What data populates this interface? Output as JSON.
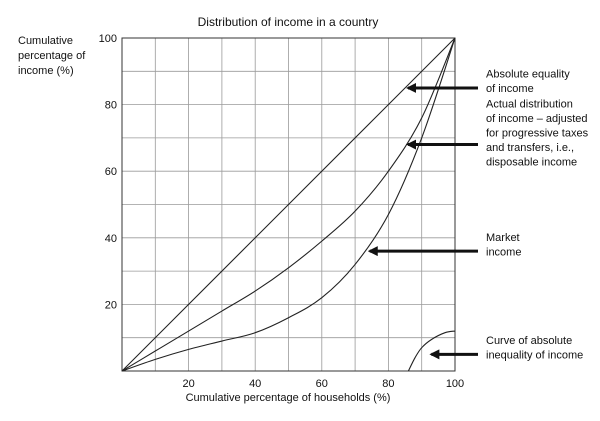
{
  "chart_data": {
    "type": "line",
    "title": "Distribution of income in a country",
    "ylabel": [
      "Cumulative",
      "percentage of",
      "income (%)"
    ],
    "xlabel": "Cumulative percentage of households (%)",
    "xlim": [
      0,
      100
    ],
    "ylim": [
      0,
      100
    ],
    "x_ticks": [
      20,
      40,
      60,
      80,
      100
    ],
    "y_ticks": [
      20,
      40,
      60,
      80,
      100
    ],
    "grid": true,
    "series": [
      {
        "key": "equality",
        "points": [
          [
            0,
            0
          ],
          [
            100,
            100
          ]
        ]
      },
      {
        "key": "disposable",
        "points": [
          [
            0,
            0
          ],
          [
            10,
            6
          ],
          [
            20,
            12
          ],
          [
            30,
            18
          ],
          [
            40,
            24
          ],
          [
            50,
            31
          ],
          [
            60,
            39
          ],
          [
            70,
            48
          ],
          [
            80,
            60
          ],
          [
            90,
            76
          ],
          [
            100,
            100
          ]
        ]
      },
      {
        "key": "market",
        "points": [
          [
            0,
            0
          ],
          [
            10,
            3.5
          ],
          [
            20,
            6.5
          ],
          [
            30,
            9
          ],
          [
            40,
            11.5
          ],
          [
            50,
            16
          ],
          [
            60,
            22
          ],
          [
            70,
            32
          ],
          [
            80,
            47
          ],
          [
            90,
            70
          ],
          [
            100,
            100
          ]
        ]
      },
      {
        "key": "inequality",
        "points": [
          [
            86,
            0
          ],
          [
            88,
            4
          ],
          [
            90,
            7
          ],
          [
            93,
            9.5
          ],
          [
            97,
            11.5
          ],
          [
            100,
            12
          ]
        ]
      }
    ],
    "annotations": [
      {
        "lines": [
          "Absolute equality",
          "of income"
        ],
        "point": [
          85,
          85
        ]
      },
      {
        "lines": [
          "Actual distribution",
          "of income – adjusted",
          "for progressive taxes",
          "and transfers, i.e.,",
          "disposable income"
        ],
        "point": [
          85,
          68
        ]
      },
      {
        "lines": [
          "Market",
          "income"
        ],
        "point": [
          73.5,
          36
        ]
      },
      {
        "lines": [
          "Curve of absolute",
          "inequality of income"
        ],
        "point": [
          92,
          5
        ]
      }
    ]
  }
}
